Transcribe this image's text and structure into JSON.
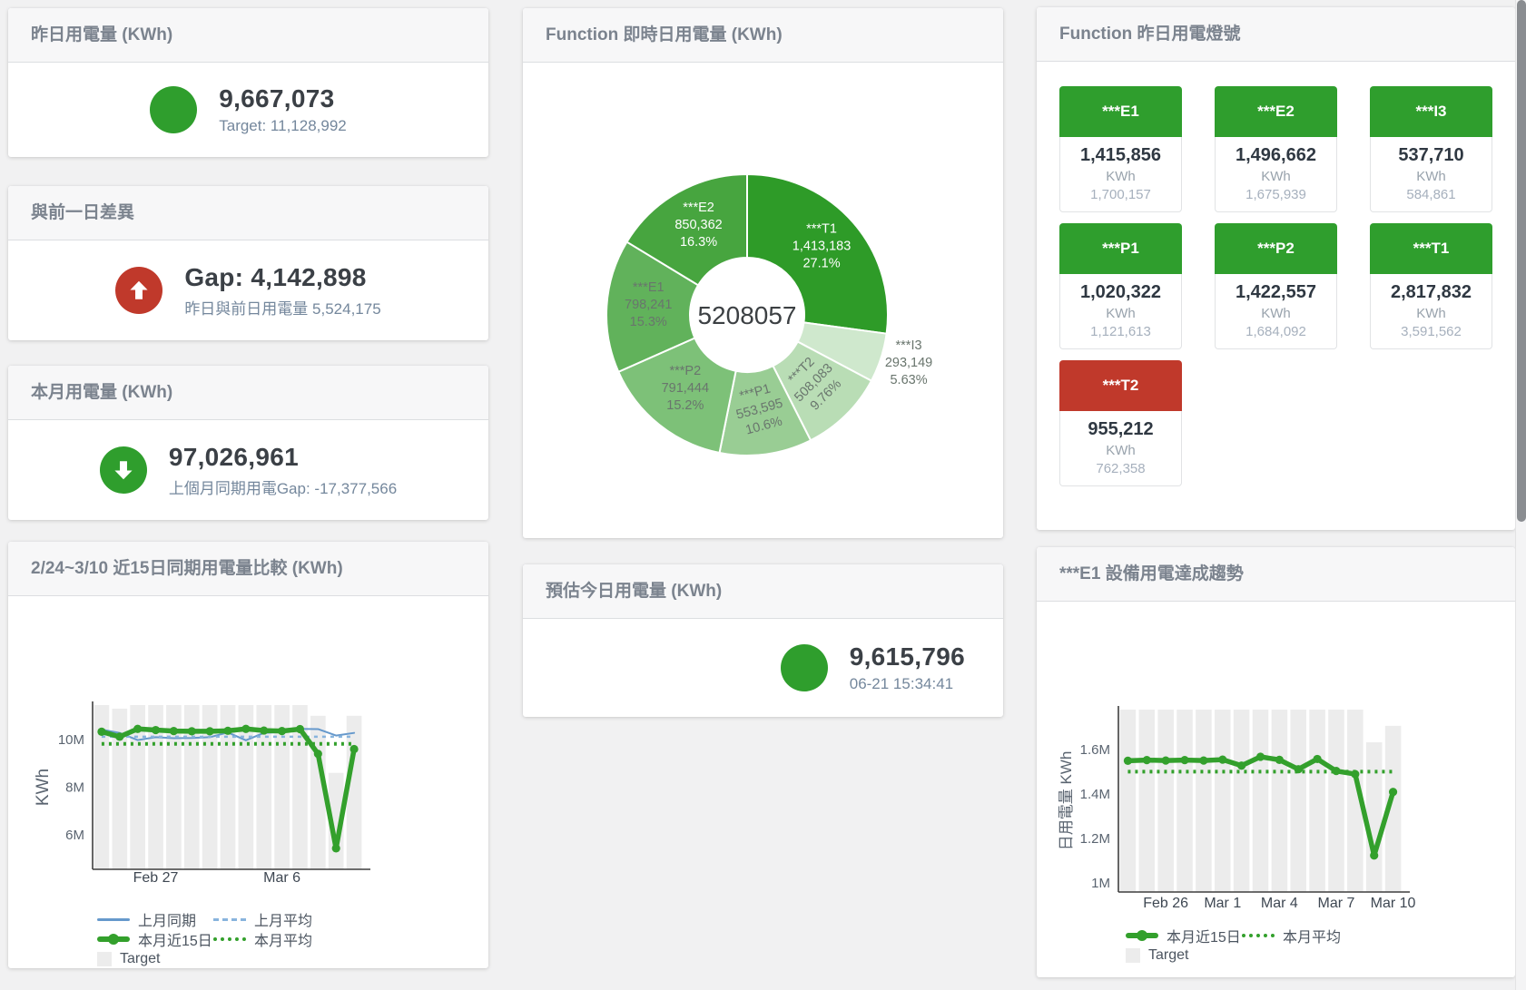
{
  "colors": {
    "green": "#2f9e2d",
    "red": "#c0392b",
    "chart_green": "#33a02c",
    "chart_blue": "#6699cc",
    "chart_blue_light": "#88b4dd",
    "target_gray": "#ececec"
  },
  "panels": {
    "yesterday": {
      "title": "昨日用電量 (KWh)",
      "value": "9,667,073",
      "subtext": "Target: 11,128,992",
      "status_color": "#2f9e2d"
    },
    "day_gap": {
      "title": "與前一日差異",
      "value": "Gap: 4,142,898",
      "subtext": "昨日與前日用電量 5,524,175",
      "status_color": "#c0392b"
    },
    "month": {
      "title": "本月用電量 (KWh)",
      "value": "97,026,961",
      "subtext": "上個月同期用電Gap: -17,377,566",
      "status_color": "#2f9e2d"
    },
    "realtime": {
      "title": "Function 即時日用電量 (KWh)"
    },
    "estimate": {
      "title": "預估今日用電量 (KWh)",
      "value": "9,615,796",
      "subtext": "06-21 15:34:41",
      "status_color": "#2f9e2d"
    },
    "lights": {
      "title": "Function 昨日用電燈號",
      "unit": "KWh",
      "tiles": [
        {
          "name": "***E1",
          "value": "1,415,856",
          "target": "1,700,157",
          "color": "#2f9e2d"
        },
        {
          "name": "***E2",
          "value": "1,496,662",
          "target": "1,675,939",
          "color": "#2f9e2d"
        },
        {
          "name": "***I3",
          "value": "537,710",
          "target": "584,861",
          "color": "#2f9e2d"
        },
        {
          "name": "***P1",
          "value": "1,020,322",
          "target": "1,121,613",
          "color": "#2f9e2d"
        },
        {
          "name": "***P2",
          "value": "1,422,557",
          "target": "1,684,092",
          "color": "#2f9e2d"
        },
        {
          "name": "***T1",
          "value": "2,817,832",
          "target": "3,591,562",
          "color": "#2f9e2d"
        },
        {
          "name": "***T2",
          "value": "955,212",
          "target": "762,358",
          "color": "#c0392b"
        }
      ]
    },
    "compare": {
      "title": "2/24~3/10 近15日同期用電量比較 (KWh)"
    },
    "e1_trend": {
      "title": "***E1 設備用電達成趨勢"
    }
  },
  "chart_data": [
    {
      "id": "donut",
      "type": "pie",
      "title": "Function 即時日用電量 (KWh)",
      "center_total": "5208057",
      "slices": [
        {
          "name": "***T1",
          "value": "1,413,183",
          "pct": "27.1%",
          "percent": 27.1,
          "color": "#2e9b28",
          "label_color": "#ffffff"
        },
        {
          "name": "***I3",
          "value": "293,149",
          "pct": "5.63%",
          "percent": 5.63,
          "color": "#cfe8cd",
          "label_color": "#69756d",
          "outside": true
        },
        {
          "name": "***T2",
          "value": "508,083",
          "pct": "9.76%",
          "percent": 9.76,
          "color": "#b9ddb5",
          "label_color": "#69756d",
          "rotate": -45
        },
        {
          "name": "***P1",
          "value": "553,595",
          "pct": "10.6%",
          "percent": 10.6,
          "color": "#99cd94",
          "label_color": "#69756d",
          "rotate": -15
        },
        {
          "name": "***P2",
          "value": "791,444",
          "pct": "15.2%",
          "percent": 15.2,
          "color": "#7dc178",
          "label_color": "#69756d"
        },
        {
          "name": "***E1",
          "value": "798,241",
          "pct": "15.3%",
          "percent": 15.3,
          "color": "#61b25b",
          "label_color": "#69756d"
        },
        {
          "name": "***E2",
          "value": "850,362",
          "pct": "16.3%",
          "percent": 16.3,
          "color": "#47a53f",
          "label_color": "#ffffff"
        }
      ]
    },
    {
      "id": "compare15",
      "type": "line",
      "title": "2/24~3/10 近15日同期用電量比較 (KWh)",
      "ylabel": "KWh",
      "ylim": [
        4.55,
        11.45
      ],
      "grid": false,
      "legend_position": "bottom",
      "yticks": [
        {
          "v": 6,
          "label": "6M"
        },
        {
          "v": 8,
          "label": "8M"
        },
        {
          "v": 10,
          "label": "10M"
        }
      ],
      "xticks": [
        {
          "i": 3,
          "label": "Feb 27"
        },
        {
          "i": 10,
          "label": "Mar 6"
        }
      ],
      "target_bars": [
        11.45,
        11.3,
        11.45,
        11.45,
        11.45,
        11.45,
        11.45,
        11.45,
        11.45,
        11.45,
        11.45,
        11.45,
        11.0,
        8.6,
        11.0
      ],
      "series": [
        {
          "name": "上月同期",
          "style": "solid",
          "color": "#6699cc",
          "width": 2,
          "values": [
            10.42,
            10.28,
            9.98,
            10.1,
            10.06,
            10.07,
            10.1,
            10.3,
            9.97,
            10.28,
            10.32,
            10.45,
            10.44,
            10.17,
            10.28
          ]
        },
        {
          "name": "上月平均",
          "style": "dashed",
          "color": "#88b4dd",
          "width": 2.5,
          "constant": 10.12
        },
        {
          "name": "本月近15日",
          "style": "solid",
          "color": "#33a02c",
          "width": 5.5,
          "marker": true,
          "values": [
            10.33,
            10.12,
            10.45,
            10.4,
            10.36,
            10.35,
            10.35,
            10.37,
            10.45,
            10.38,
            10.36,
            10.44,
            9.4,
            5.43,
            9.6
          ]
        },
        {
          "name": "本月平均",
          "style": "dotted",
          "color": "#33a02c",
          "width": 4,
          "constant": 9.82
        },
        {
          "name": "Target",
          "style": "bar",
          "color": "#ececec"
        }
      ],
      "legend_rows": [
        [
          0,
          1
        ],
        [
          2,
          3
        ],
        [
          4
        ]
      ]
    },
    {
      "id": "e1trend",
      "type": "line",
      "title": "***E1 設備用電達成趨勢",
      "ylabel": "日用電量 KWh",
      "ylim": [
        0.96,
        1.78
      ],
      "grid": false,
      "legend_position": "bottom",
      "yticks": [
        {
          "v": 1,
          "label": "1M"
        },
        {
          "v": 1.2,
          "label": "1.2M"
        },
        {
          "v": 1.4,
          "label": "1.4M"
        },
        {
          "v": 1.6,
          "label": "1.6M"
        }
      ],
      "xticks": [
        {
          "i": 2,
          "label": "Feb 26"
        },
        {
          "i": 5,
          "label": "Mar 1"
        },
        {
          "i": 8,
          "label": "Mar 4"
        },
        {
          "i": 11,
          "label": "Mar 7"
        },
        {
          "i": 14,
          "label": "Mar 10"
        }
      ],
      "target_bars": [
        1.78,
        1.78,
        1.78,
        1.78,
        1.78,
        1.78,
        1.78,
        1.78,
        1.78,
        1.78,
        1.78,
        1.78,
        1.78,
        1.633,
        1.707
      ],
      "series": [
        {
          "name": "本月近15日",
          "style": "solid",
          "color": "#33a02c",
          "width": 5.5,
          "marker": true,
          "values": [
            1.55,
            1.553,
            1.551,
            1.553,
            1.551,
            1.555,
            1.528,
            1.568,
            1.554,
            1.512,
            1.558,
            1.504,
            1.49,
            1.124,
            1.41
          ]
        },
        {
          "name": "本月平均",
          "style": "dotted",
          "color": "#33a02c",
          "width": 4,
          "constant": 1.501
        },
        {
          "name": "Target",
          "style": "bar",
          "color": "#ececec"
        }
      ],
      "legend_rows": [
        [
          0,
          1
        ],
        [
          2
        ]
      ]
    }
  ]
}
